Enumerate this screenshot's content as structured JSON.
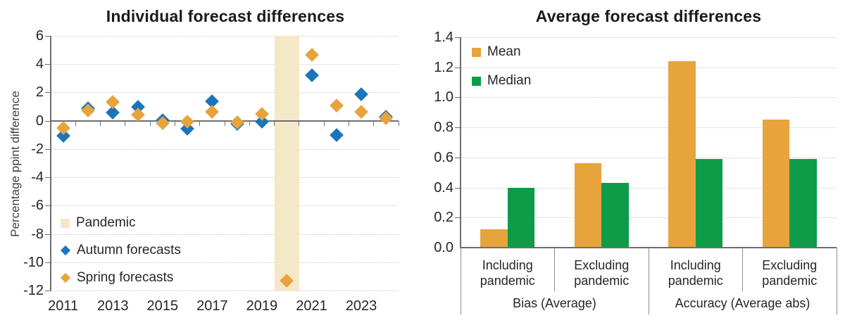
{
  "colors": {
    "autumn_blue": "#1C75BC",
    "spring_orange": "#E7A33C",
    "median_green": "#0E9C49",
    "pandemic_band": "#F5E8C8",
    "axis_line": "#6e6e6e",
    "gridline": "#c9c9c9",
    "title_text": "#1a1a1a"
  },
  "chart_data": [
    {
      "type": "scatter",
      "title": "Individual forecast differences",
      "ylabel": "Percentage ppint difference",
      "ylim": [
        -12,
        6
      ],
      "ytick_step": 2,
      "ytick_labels": [
        "6",
        "4",
        "2",
        "0",
        "-2",
        "-4",
        "-6",
        "-8",
        "-10",
        "-12"
      ],
      "years": [
        2011,
        2012,
        2013,
        2014,
        2015,
        2016,
        2017,
        2018,
        2019,
        2020,
        2021,
        2022,
        2023,
        2024
      ],
      "xtick_labels": [
        "2011",
        "2013",
        "2015",
        "2017",
        "2019",
        "2021",
        "2023"
      ],
      "grid": "horizontal dotted",
      "legend_position": "lower left inside",
      "band": {
        "label": "Pandemic",
        "year": 2020,
        "color": "#F5E8C8"
      },
      "series": [
        {
          "name": "Autumn forecasts",
          "marker": "diamond",
          "color": "#1C75BC",
          "values": [
            -1.05,
            0.9,
            0.6,
            1.0,
            0.05,
            -0.55,
            1.4,
            -0.2,
            -0.05,
            null,
            3.2,
            -1.0,
            1.85,
            0.3
          ]
        },
        {
          "name": "Spring forecasts",
          "marker": "diamond",
          "color": "#E7A33C",
          "values": [
            -0.5,
            0.75,
            1.35,
            0.45,
            -0.15,
            -0.05,
            0.65,
            -0.1,
            0.5,
            -11.3,
            4.65,
            1.1,
            0.65,
            0.2
          ]
        }
      ]
    },
    {
      "type": "bar",
      "title": "Average forecast differences",
      "ylim": [
        0,
        1.4
      ],
      "ytick_step": 0.2,
      "ytick_labels": [
        "1.4",
        "1.2",
        "1.0",
        "0.8",
        "0.6",
        "0.4",
        "0.2",
        "0.0"
      ],
      "categories": [
        "Including pandemic",
        "Excluding pandemic",
        "Including pandemic",
        "Excluding pandemic"
      ],
      "category_groups": [
        {
          "label": "Bias (Average)",
          "spans": [
            0,
            1
          ]
        },
        {
          "label": "Accuracy (Average abs)",
          "spans": [
            2,
            3
          ]
        }
      ],
      "grid": "horizontal dotted",
      "legend_position": "upper left inside",
      "series": [
        {
          "name": "Mean",
          "color": "#E7A33C",
          "values": [
            0.12,
            0.56,
            1.24,
            0.85
          ]
        },
        {
          "name": "Median",
          "color": "#0E9C49",
          "values": [
            0.4,
            0.43,
            0.59,
            0.59
          ]
        }
      ]
    }
  ]
}
